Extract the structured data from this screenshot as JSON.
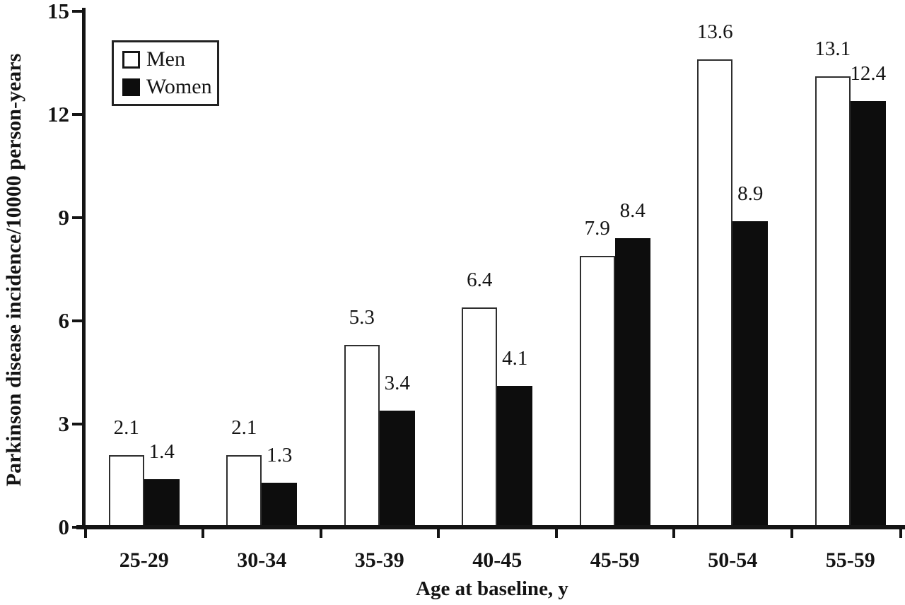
{
  "figure": {
    "background": "#ffffff",
    "ink": "#141414"
  },
  "chart_data": {
    "type": "bar",
    "title": "",
    "categories": [
      "25-29",
      "30-34",
      "35-39",
      "40-45",
      "45-59",
      "50-54",
      "55-59"
    ],
    "series": [
      {
        "name": "Men",
        "fill": "#ffffff",
        "border": "#2e2e2e",
        "values": [
          2.1,
          2.1,
          5.3,
          6.4,
          7.9,
          13.6,
          13.1
        ]
      },
      {
        "name": "Women",
        "fill": "#0d0d0d",
        "border": "#0d0d0d",
        "values": [
          1.4,
          1.3,
          3.4,
          4.1,
          8.4,
          8.9,
          12.4
        ]
      }
    ],
    "xlabel": "Age at baseline, y",
    "ylabel": "Parkinson disease incidence/10000 person-years",
    "ylim": [
      0,
      15
    ],
    "yticks": [
      0,
      3,
      6,
      9,
      12,
      15
    ],
    "value_labels": true,
    "legend_position": "top-left",
    "grid": false
  }
}
